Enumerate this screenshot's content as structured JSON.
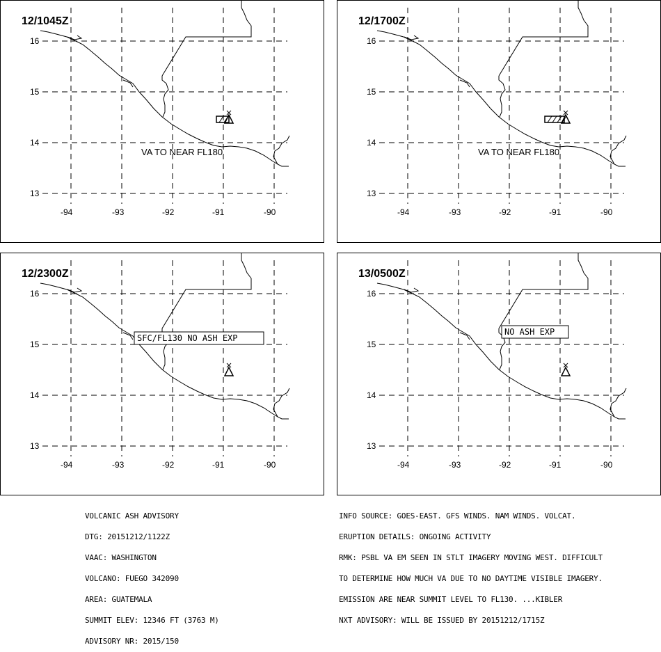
{
  "panels": [
    {
      "id": "p1",
      "title": "12/1045Z",
      "label": "VA TO NEAR FL180",
      "label_box": false,
      "ash": true
    },
    {
      "id": "p2",
      "title": "12/1700Z",
      "label": "VA TO NEAR FL180",
      "label_box": false,
      "ash": true
    },
    {
      "id": "p3",
      "title": "12/2300Z",
      "label": "SFC/FL130 NO ASH EXP",
      "label_box": true,
      "ash": false
    },
    {
      "id": "p4",
      "title": "13/0500Z",
      "label": "NO ASH EXP",
      "label_box": true,
      "ash": false
    }
  ],
  "axes": {
    "lat_ticks": [
      "16",
      "15",
      "14",
      "13"
    ],
    "lon_ticks": [
      "-94",
      "-93",
      "-92",
      "-91",
      "-90"
    ]
  },
  "advisory_left": [
    "VOLCANIC ASH ADVISORY",
    "DTG: 20151212/1122Z",
    "VAAC: WASHINGTON",
    "VOLCANO: FUEGO 342090",
    "AREA: GUATEMALA",
    "SUMMIT ELEV: 12346 FT (3763 M)",
    "ADVISORY NR: 2015/150"
  ],
  "advisory_right": [
    "INFO SOURCE: GOES-EAST. GFS WINDS. NAM WINDS. VOLCAT.",
    "ERUPTION DETAILS: ONGOING ACTIVITY",
    "RMK: PSBL VA EM SEEN IN STLT IMAGERY MOVING WEST. DIFFICULT",
    "TO DETERMINE HOW MUCH VA DUE TO NO DAYTIME VISIBLE IMAGERY.",
    "EMISSION ARE NEAR SUMMIT LEVEL TO FL130. ...KIBLER",
    "NXT ADVISORY: WILL BE ISSUED BY 20151212/1715Z"
  ]
}
